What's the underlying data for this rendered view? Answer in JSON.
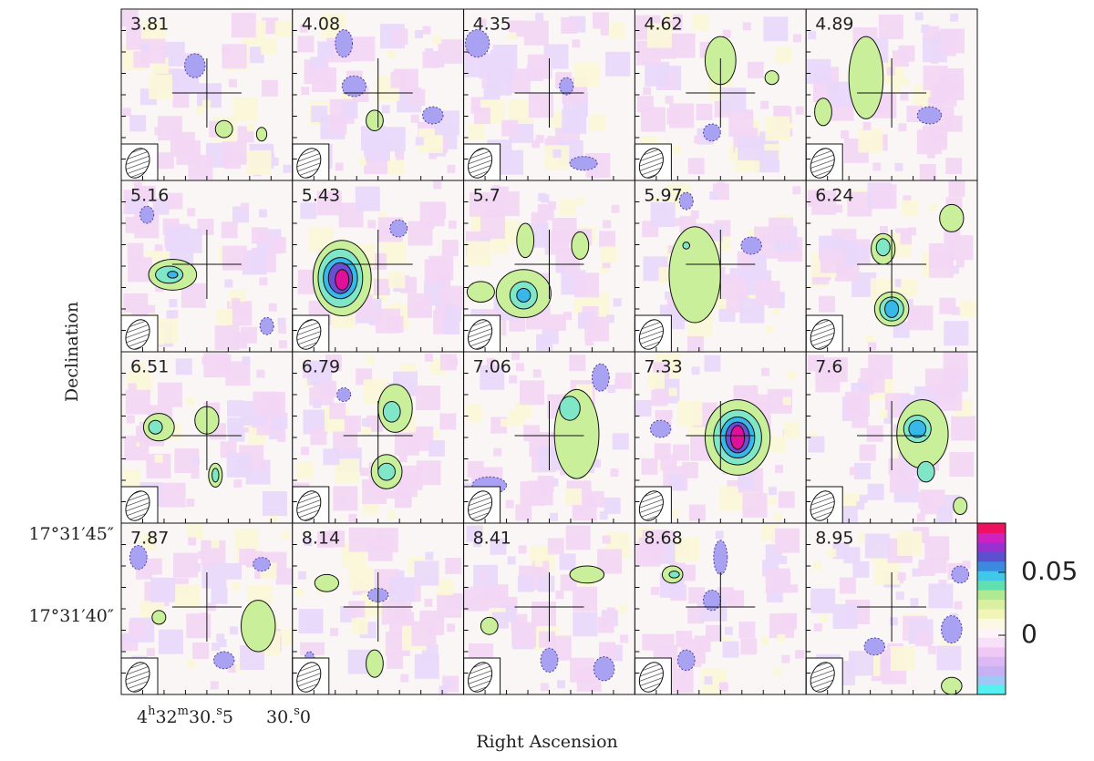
{
  "channels": [
    3.81,
    4.08,
    4.35,
    4.62,
    4.89,
    5.16,
    5.43,
    5.7,
    5.97,
    6.24,
    6.51,
    6.79,
    7.06,
    7.33,
    7.6,
    7.87,
    8.14,
    8.41,
    8.68,
    8.95
  ],
  "x_label": "Right Ascension",
  "y_label": "Declination",
  "dec_ticks": [
    "17°31′45″",
    "17°31′40″"
  ],
  "ra_ticks": [
    {
      "main": "4",
      "h": "h",
      "min": "32",
      "m": "m",
      "sec": "30.",
      "s": "s",
      "frac": "5"
    },
    {
      "sec": "30.",
      "s": "s",
      "frac": "0"
    }
  ],
  "colorbar": {
    "clim": [
      -0.047,
      0.089
    ],
    "ticks": [
      0,
      0.05
    ]
  }
}
